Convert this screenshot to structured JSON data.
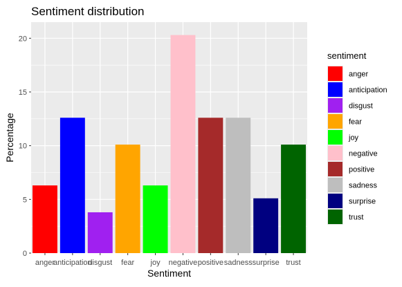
{
  "chart_data": {
    "type": "bar",
    "title": "Sentiment distribution",
    "xlabel": "Sentiment",
    "ylabel": "Percentage",
    "ylim": [
      0,
      21.5
    ],
    "yticks": [
      0,
      5,
      10,
      15,
      20
    ],
    "grid": true,
    "legend": {
      "title": "sentiment",
      "position": "right"
    },
    "categories": [
      "anger",
      "anticipation",
      "disgust",
      "fear",
      "joy",
      "negative",
      "positive",
      "sadness",
      "surprise",
      "trust"
    ],
    "values": [
      6.3,
      12.6,
      3.8,
      10.1,
      6.3,
      20.3,
      12.6,
      12.6,
      5.1,
      10.1
    ],
    "colors": [
      "#FF0000",
      "#0000FF",
      "#A020F0",
      "#FFA500",
      "#00FF00",
      "#FFC0CB",
      "#A52A2A",
      "#BEBEBE",
      "#000080",
      "#006400"
    ]
  }
}
